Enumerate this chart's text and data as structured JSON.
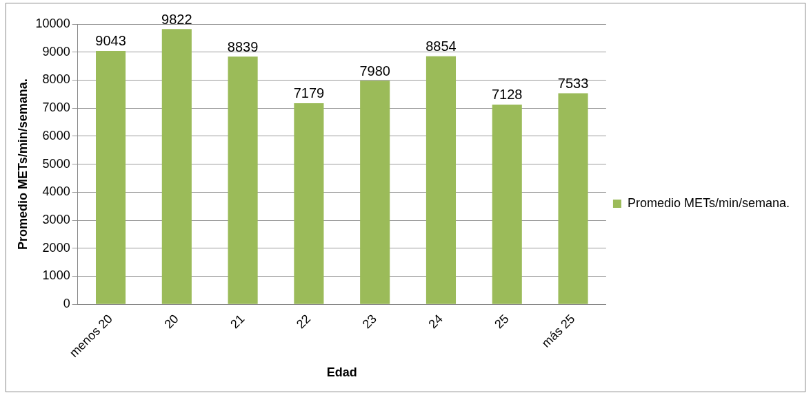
{
  "chart_data": {
    "type": "bar",
    "xlabel": "Edad",
    "ylabel": "Promedio METs/min/semana.",
    "categories": [
      "menos 20",
      "20",
      "21",
      "22",
      "23",
      "24",
      "25",
      "más 25"
    ],
    "series": [
      {
        "name": "Promedio METs/min/semana.",
        "color": "#9bbb59",
        "values": [
          9043,
          9822,
          8839,
          7179,
          7980,
          8854,
          7128,
          7533
        ]
      }
    ],
    "ylim": [
      0,
      10000
    ],
    "yticks": [
      0,
      1000,
      2000,
      3000,
      4000,
      5000,
      6000,
      7000,
      8000,
      9000,
      10000
    ],
    "grid": "y",
    "legend": "right",
    "data_labels": true
  }
}
